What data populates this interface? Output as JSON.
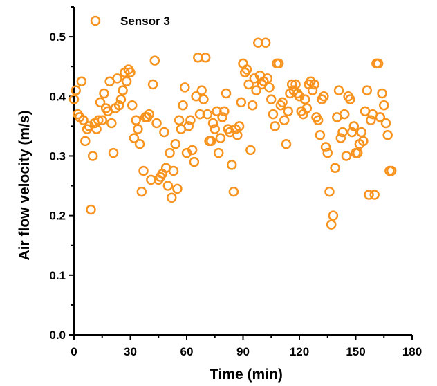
{
  "chart_data": {
    "type": "scatter",
    "xlabel": "Time (min)",
    "ylabel": "Air flow velocity (m/s)",
    "xlim": [
      0,
      180
    ],
    "ylim": [
      0,
      0.55
    ],
    "xticks": [
      0,
      30,
      60,
      90,
      120,
      150,
      180
    ],
    "xtick_labels": [
      "0",
      "30",
      "60",
      "90",
      "120",
      "150",
      "180"
    ],
    "yticks": [
      0,
      0.1,
      0.2,
      0.3,
      0.4,
      0.5
    ],
    "ytick_labels": [
      "0.0",
      "0.1",
      "0.2",
      "0.3",
      "0.4",
      "0.5"
    ],
    "grid": false,
    "legend_position": "top-left",
    "marker": "open-circle",
    "color": "#F7931E",
    "series": [
      {
        "name": "Sensor 3",
        "points": [
          [
            0,
            0.395
          ],
          [
            1,
            0.41
          ],
          [
            2,
            0.37
          ],
          [
            3,
            0.365
          ],
          [
            4,
            0.425
          ],
          [
            5,
            0.36
          ],
          [
            6,
            0.325
          ],
          [
            7,
            0.345
          ],
          [
            8,
            0.35
          ],
          [
            9,
            0.21
          ],
          [
            10,
            0.3
          ],
          [
            11,
            0.355
          ],
          [
            12,
            0.345
          ],
          [
            13,
            0.36
          ],
          [
            14,
            0.39
          ],
          [
            15,
            0.36
          ],
          [
            16,
            0.405
          ],
          [
            17,
            0.38
          ],
          [
            18,
            0.375
          ],
          [
            19,
            0.425
          ],
          [
            20,
            0.355
          ],
          [
            21,
            0.305
          ],
          [
            22,
            0.38
          ],
          [
            23,
            0.43
          ],
          [
            24,
            0.385
          ],
          [
            25,
            0.395
          ],
          [
            26,
            0.41
          ],
          [
            27,
            0.44
          ],
          [
            28,
            0.425
          ],
          [
            29,
            0.445
          ],
          [
            30,
            0.44
          ],
          [
            31,
            0.385
          ],
          [
            32,
            0.33
          ],
          [
            33,
            0.36
          ],
          [
            34,
            0.345
          ],
          [
            35,
            0.32
          ],
          [
            36,
            0.24
          ],
          [
            37,
            0.275
          ],
          [
            38,
            0.365
          ],
          [
            39,
            0.365
          ],
          [
            40,
            0.37
          ],
          [
            41,
            0.26
          ],
          [
            42,
            0.42
          ],
          [
            43,
            0.46
          ],
          [
            44,
            0.355
          ],
          [
            45,
            0.26
          ],
          [
            46,
            0.265
          ],
          [
            47,
            0.27
          ],
          [
            48,
            0.34
          ],
          [
            49,
            0.28
          ],
          [
            50,
            0.25
          ],
          [
            51,
            0.305
          ],
          [
            52,
            0.23
          ],
          [
            53,
            0.275
          ],
          [
            54,
            0.32
          ],
          [
            55,
            0.245
          ],
          [
            56,
            0.36
          ],
          [
            57,
            0.345
          ],
          [
            58,
            0.385
          ],
          [
            59,
            0.415
          ],
          [
            60,
            0.305
          ],
          [
            61,
            0.35
          ],
          [
            62,
            0.36
          ],
          [
            63,
            0.31
          ],
          [
            64,
            0.29
          ],
          [
            65,
            0.4
          ],
          [
            66,
            0.465
          ],
          [
            67,
            0.37
          ],
          [
            68,
            0.41
          ],
          [
            69,
            0.395
          ],
          [
            70,
            0.465
          ],
          [
            71,
            0.37
          ],
          [
            72,
            0.325
          ],
          [
            73,
            0.325
          ],
          [
            74,
            0.355
          ],
          [
            75,
            0.345
          ],
          [
            76,
            0.375
          ],
          [
            77,
            0.305
          ],
          [
            78,
            0.33
          ],
          [
            79,
            0.365
          ],
          [
            80,
            0.375
          ],
          [
            81,
            0.405
          ],
          [
            82,
            0.345
          ],
          [
            83,
            0.34
          ],
          [
            84,
            0.285
          ],
          [
            85,
            0.24
          ],
          [
            86,
            0.345
          ],
          [
            87,
            0.335
          ],
          [
            88,
            0.35
          ],
          [
            89,
            0.39
          ],
          [
            90,
            0.455
          ],
          [
            91,
            0.44
          ],
          [
            92,
            0.445
          ],
          [
            93,
            0.42
          ],
          [
            94,
            0.31
          ],
          [
            95,
            0.385
          ],
          [
            96,
            0.43
          ],
          [
            97,
            0.41
          ],
          [
            98,
            0.49
          ],
          [
            99,
            0.435
          ],
          [
            100,
            0.42
          ],
          [
            101,
            0.425
          ],
          [
            102,
            0.49
          ],
          [
            103,
            0.43
          ],
          [
            104,
            0.415
          ],
          [
            105,
            0.395
          ],
          [
            106,
            0.37
          ],
          [
            107,
            0.35
          ],
          [
            108,
            0.455
          ],
          [
            109,
            0.455
          ],
          [
            110,
            0.385
          ],
          [
            111,
            0.39
          ],
          [
            112,
            0.36
          ],
          [
            113,
            0.32
          ],
          [
            114,
            0.375
          ],
          [
            115,
            0.405
          ],
          [
            116,
            0.42
          ],
          [
            117,
            0.41
          ],
          [
            118,
            0.42
          ],
          [
            119,
            0.405
          ],
          [
            120,
            0.4
          ],
          [
            121,
            0.375
          ],
          [
            122,
            0.37
          ],
          [
            123,
            0.395
          ],
          [
            124,
            0.38
          ],
          [
            125,
            0.42
          ],
          [
            126,
            0.425
          ],
          [
            127,
            0.41
          ],
          [
            128,
            0.42
          ],
          [
            129,
            0.365
          ],
          [
            130,
            0.36
          ],
          [
            131,
            0.335
          ],
          [
            132,
            0.395
          ],
          [
            133,
            0.4
          ],
          [
            134,
            0.315
          ],
          [
            135,
            0.305
          ],
          [
            136,
            0.24
          ],
          [
            137,
            0.185
          ],
          [
            138,
            0.2
          ],
          [
            139,
            0.28
          ],
          [
            140,
            0.365
          ],
          [
            141,
            0.41
          ],
          [
            142,
            0.33
          ],
          [
            143,
            0.34
          ],
          [
            144,
            0.37
          ],
          [
            145,
            0.3
          ],
          [
            146,
            0.4
          ],
          [
            147,
            0.395
          ],
          [
            148,
            0.34
          ],
          [
            149,
            0.35
          ],
          [
            150,
            0.305
          ],
          [
            151,
            0.305
          ],
          [
            152,
            0.32
          ],
          [
            153,
            0.34
          ],
          [
            154,
            0.325
          ],
          [
            155,
            0.375
          ],
          [
            156,
            0.41
          ],
          [
            157,
            0.235
          ],
          [
            158,
            0.36
          ],
          [
            159,
            0.37
          ],
          [
            160,
            0.235
          ],
          [
            161,
            0.455
          ],
          [
            162,
            0.455
          ],
          [
            163,
            0.365
          ],
          [
            164,
            0.405
          ],
          [
            165,
            0.385
          ],
          [
            166,
            0.355
          ],
          [
            167,
            0.335
          ],
          [
            168,
            0.275
          ],
          [
            169,
            0.275
          ]
        ]
      }
    ]
  }
}
